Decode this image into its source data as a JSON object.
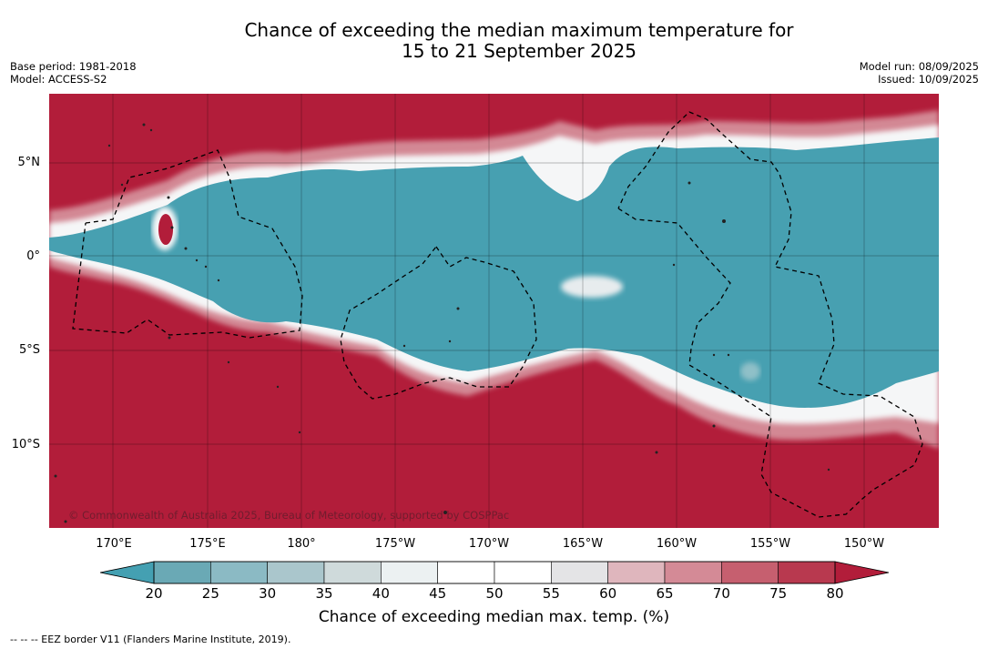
{
  "title_line1": "Chance of exceeding the median maximum temperature for",
  "title_line2": "15 to 21 September 2025",
  "base_period": "Base period: 1981-2018",
  "model": "Model: ACCESS-S2",
  "model_run": "Model run: 08/09/2025",
  "issued": "Issued: 10/09/2025",
  "lat_labels": [
    "5°N",
    "0°",
    "5°S",
    "10°S"
  ],
  "lon_labels": [
    "170°E",
    "175°E",
    "180°",
    "175°W",
    "170°W",
    "165°W",
    "160°W",
    "155°W",
    "150°W"
  ],
  "copyright": "© Commonwealth of Australia 2025, Bureau of Meteorology, supported by COSPPac",
  "colorbar": {
    "ticks": [
      "20",
      "25",
      "30",
      "35",
      "40",
      "45",
      "50",
      "55",
      "60",
      "65",
      "70",
      "75",
      "80"
    ],
    "colors": [
      "#44a0b2",
      "#6aa9b5",
      "#8bbac4",
      "#aac6cc",
      "#cfdadb",
      "#ecf1f2",
      "#ffffff",
      "#ffffff",
      "#e4e4e6",
      "#dfb6bd",
      "#d48a96",
      "#c65f6f",
      "#b8394f",
      "#b21d3a"
    ],
    "label": "Chance of exceeding median max. temp. (%)"
  },
  "colors": {
    "warm": "#b21d3a",
    "cool": "#47a0b1"
  },
  "footnote": "--  --  -- EEZ border V11 (Flanders Marine Institute, 2019)."
}
